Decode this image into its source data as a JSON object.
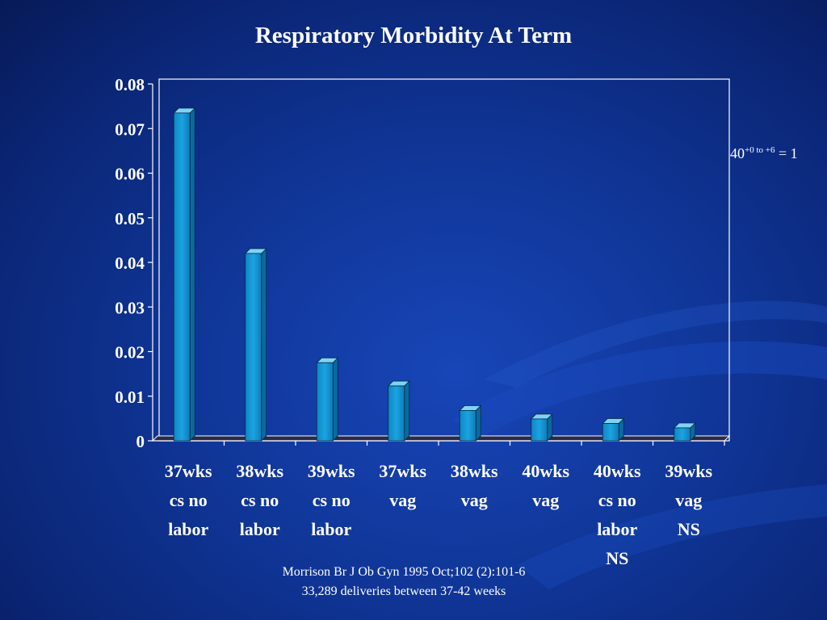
{
  "chart_data": {
    "type": "bar",
    "title": "Respiratory Morbidity At Term",
    "categories": [
      [
        "37wks",
        "cs no",
        "labor"
      ],
      [
        "38wks",
        "cs no",
        "labor"
      ],
      [
        "39wks",
        "cs no",
        "labor"
      ],
      [
        "37wks",
        "vag"
      ],
      [
        "38wks",
        "vag"
      ],
      [
        "40wks",
        "vag"
      ],
      [
        "40wks",
        "cs no",
        "labor",
        "NS"
      ],
      [
        "39wks",
        "vag",
        "NS"
      ]
    ],
    "values": [
      0.0735,
      0.042,
      0.0175,
      0.0123,
      0.0068,
      0.0049,
      0.0039,
      0.0029
    ],
    "yticks": [
      "0",
      "0.01",
      "0.02",
      "0.03",
      "0.04",
      "0.05",
      "0.06",
      "0.07",
      "0.08"
    ],
    "ylim": [
      0,
      0.08
    ],
    "grid": false,
    "bar_color": "#149ad6"
  },
  "side_note": {
    "base": "40",
    "sup": "+0 to +6",
    "rest": " = 1"
  },
  "footnotes": [
    "Morrison Br J Ob Gyn 1995 Oct;102 (2):101-6",
    "33,289 deliveries between 37-42 weeks"
  ]
}
